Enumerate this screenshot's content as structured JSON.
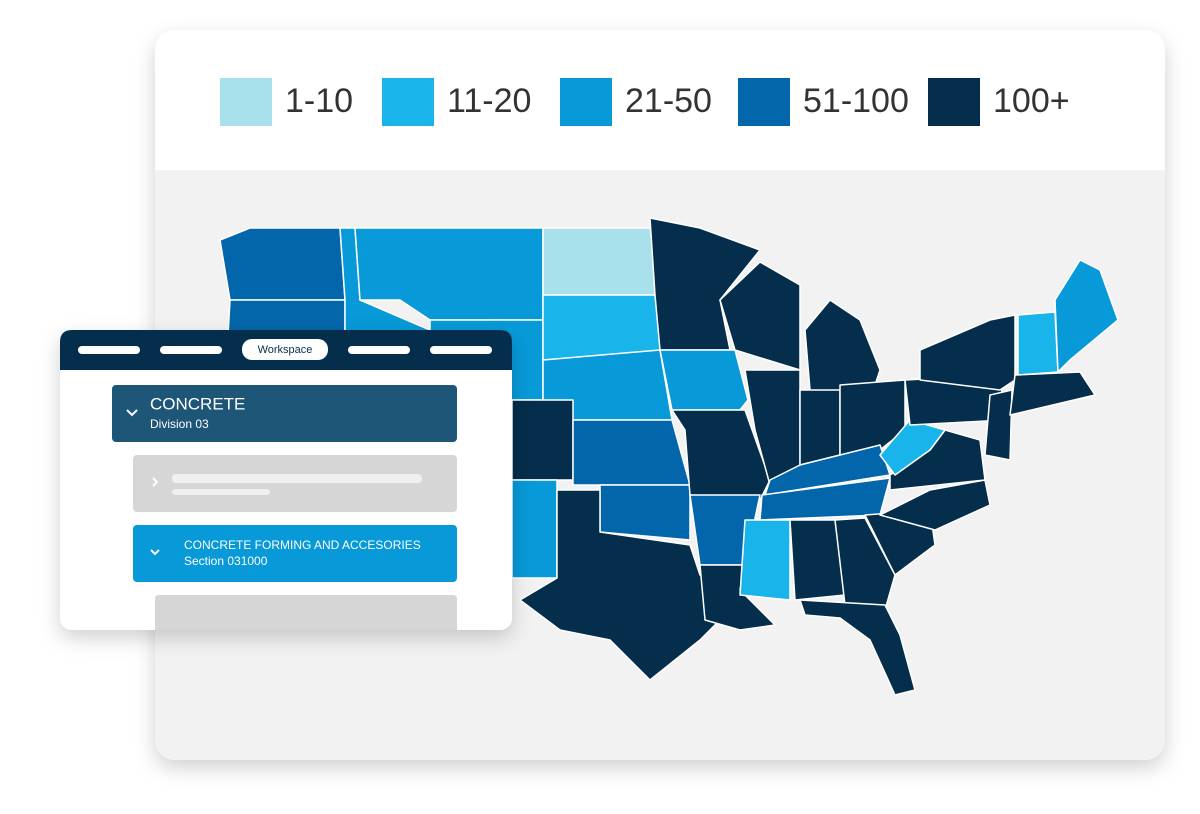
{
  "legend": {
    "items": [
      {
        "label": "1-10",
        "color": "#a8e1ec"
      },
      {
        "label": "11-20",
        "color": "#18b4ea"
      },
      {
        "label": "21-50",
        "color": "#0799d8"
      },
      {
        "label": "51-100",
        "color": "#0466aa"
      },
      {
        "label": "100+",
        "color": "#042e4b"
      }
    ]
  },
  "workspace": {
    "tab": "Workspace",
    "division": {
      "title": "CONCRETE",
      "subtitle": "Division 03"
    },
    "section": {
      "title": "CONCRETE FORMING AND ACCESORIES",
      "subtitle": "Section 031000"
    }
  }
}
